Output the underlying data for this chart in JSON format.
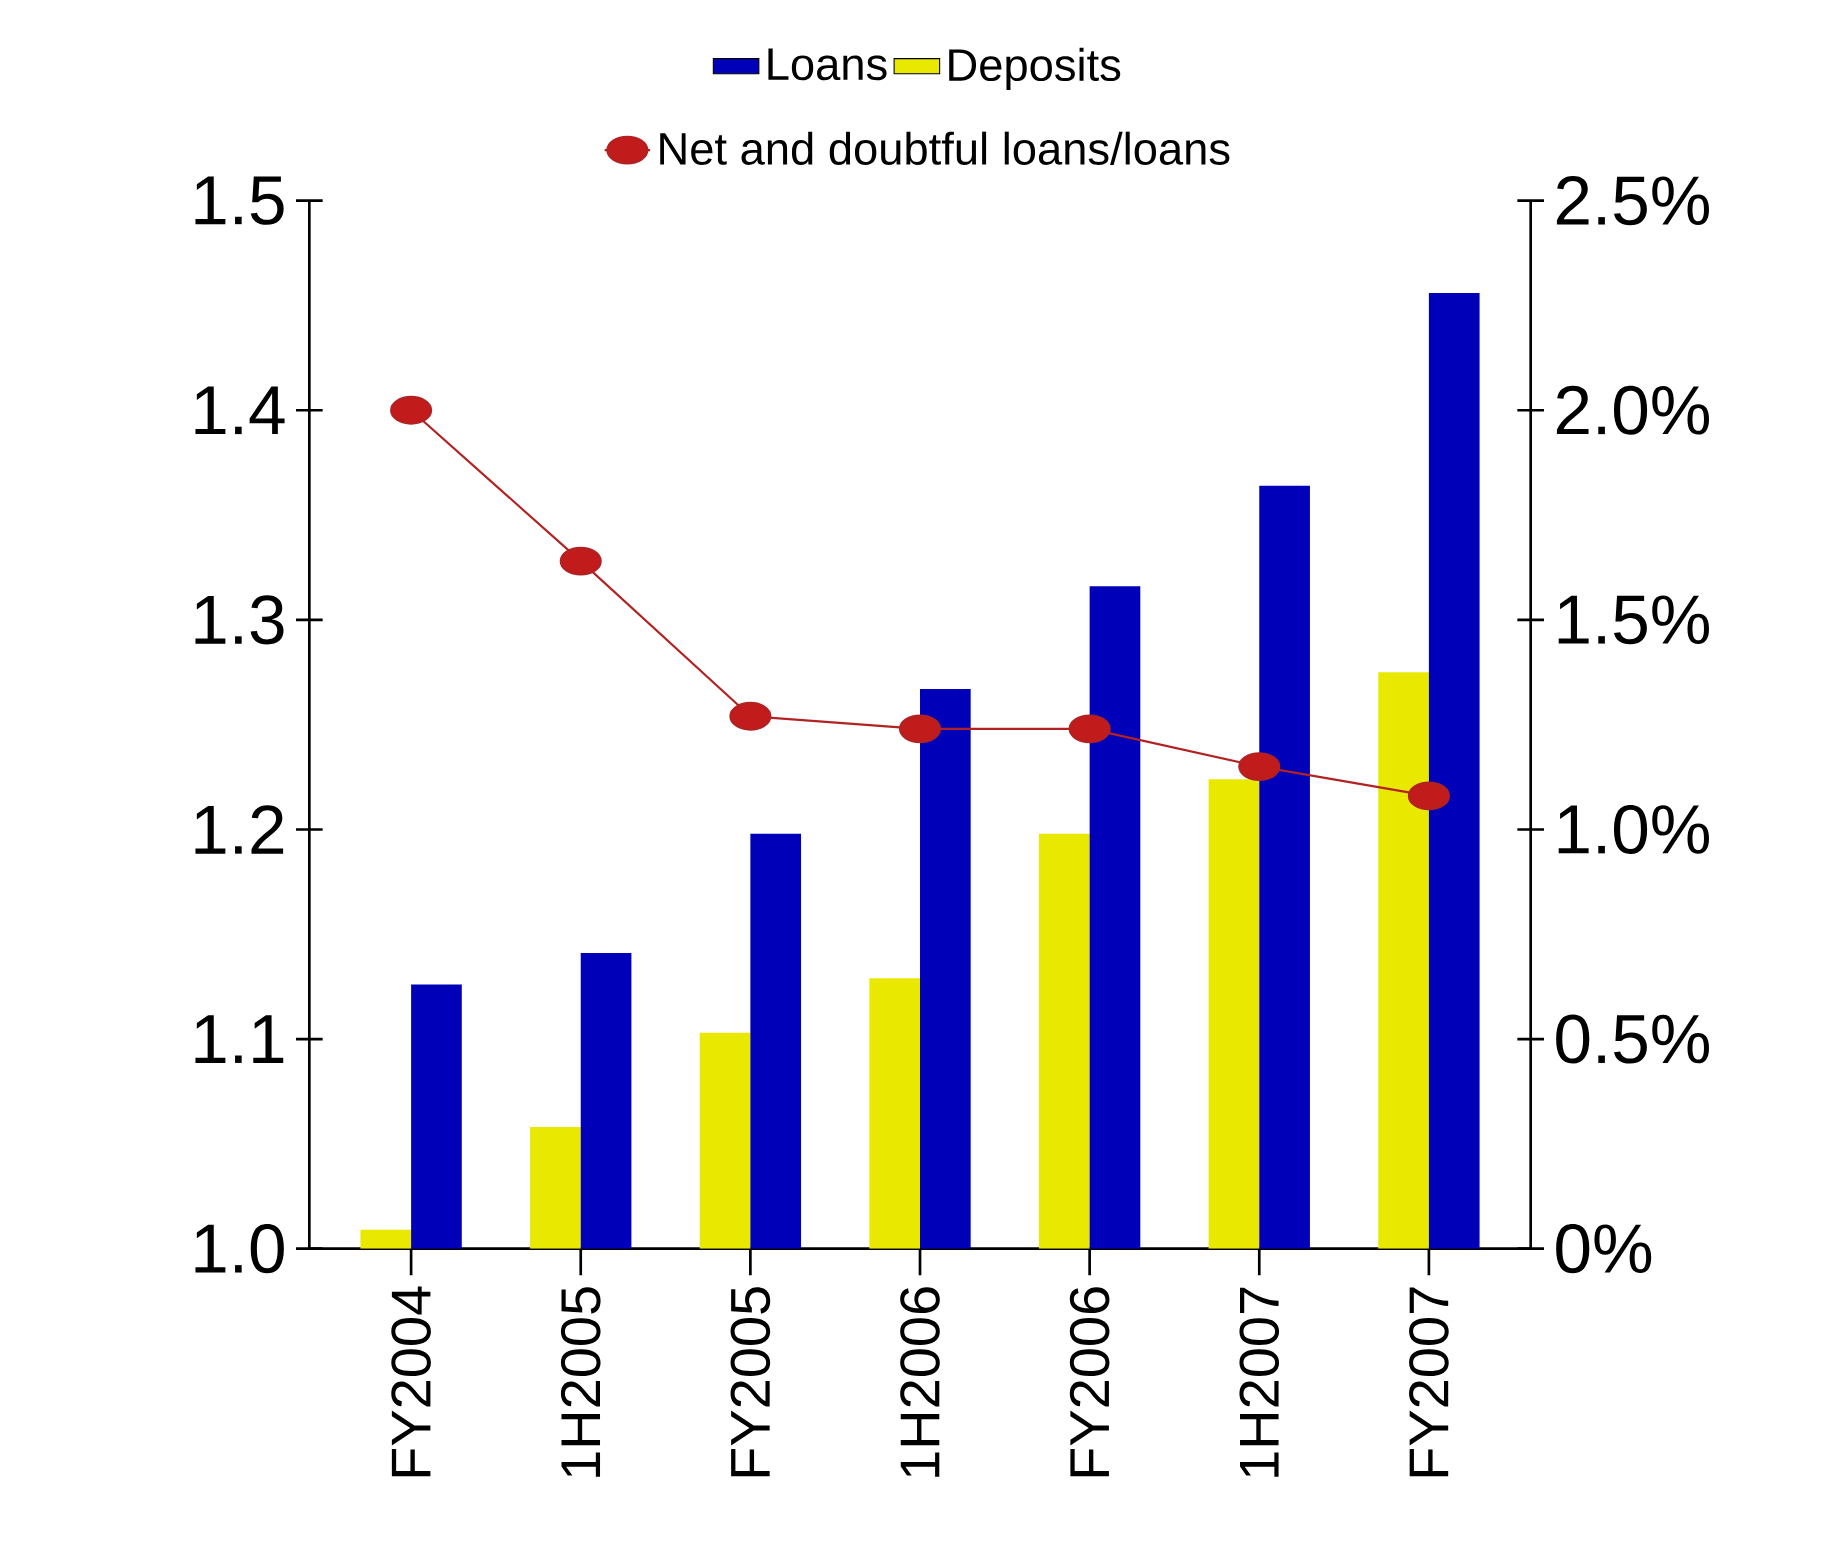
{
  "chart_data": {
    "type": "bar",
    "categories": [
      "FY2004",
      "1H2005",
      "FY2005",
      "1H2006",
      "FY2006",
      "1H2007",
      "FY2007"
    ],
    "series": [
      {
        "name": "Deposits",
        "color": "#e8e800",
        "values": [
          1.009,
          1.058,
          1.103,
          1.129,
          1.198,
          1.224,
          1.275
        ]
      },
      {
        "name": "Loans",
        "color": "#0000b8",
        "values": [
          1.126,
          1.141,
          1.198,
          1.267,
          1.316,
          1.364,
          1.456
        ]
      },
      {
        "name": "Net and doubtful loans/loans",
        "type": "line",
        "axis": "y2",
        "color": "#b22222",
        "values": [
          2.0,
          1.64,
          1.27,
          1.24,
          1.24,
          1.15,
          1.08
        ]
      }
    ],
    "ylim": [
      1.0,
      1.5
    ],
    "yticks": [
      {
        "value": 1.0,
        "label": "1.0"
      },
      {
        "value": 1.1,
        "label": "1.1"
      },
      {
        "value": 1.2,
        "label": "1.2"
      },
      {
        "value": 1.3,
        "label": "1.3"
      },
      {
        "value": 1.4,
        "label": "1.4"
      },
      {
        "value": 1.5,
        "label": "1.5"
      }
    ],
    "y2lim": [
      0,
      2.5
    ],
    "y2ticks": [
      {
        "value": 0,
        "label": "0%"
      },
      {
        "value": 0.5,
        "label": "0.5%"
      },
      {
        "value": 1.0,
        "label": "1.0%"
      },
      {
        "value": 1.5,
        "label": "1.5%"
      },
      {
        "value": 2.0,
        "label": "2.0%"
      },
      {
        "value": 2.5,
        "label": "2.5%"
      }
    ],
    "legend": "top",
    "marker": "circle",
    "line_style": "solid",
    "grid": false
  }
}
